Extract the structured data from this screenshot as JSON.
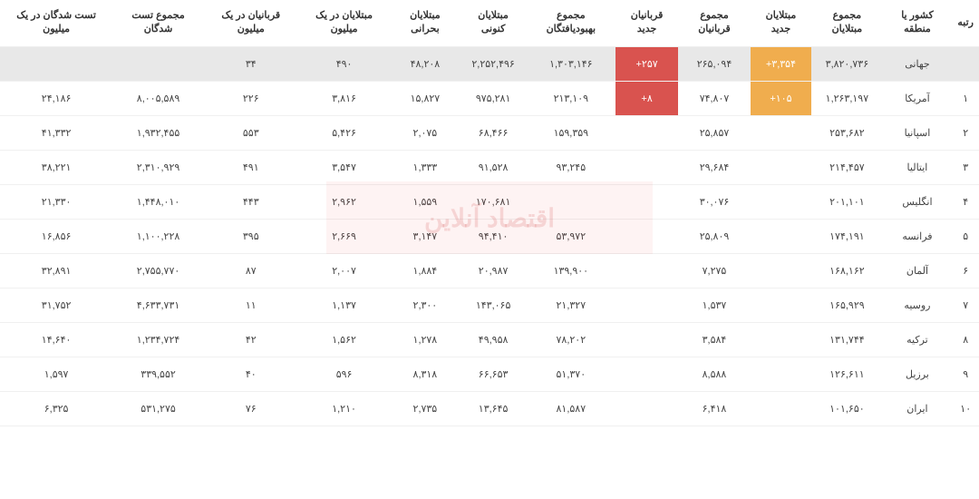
{
  "watermark": "اقتصاد آنلاین",
  "headers": [
    "رتبه",
    "کشور یا منطقه",
    "مجموع مبتلایان",
    "مبتلایان جدید",
    "مجموع قربانیان",
    "قربانیان جدید",
    "مجموع بهبودیافتگان",
    "مبتلایان کنونی",
    "مبتلایان بحرانی",
    "مبتلایان در یک میلیون",
    "قربانیان در یک میلیون",
    "مجموع تست شدگان",
    "تست شدگان در یک میلیون"
  ],
  "rows": [
    {
      "rank": "",
      "country": "جهانی",
      "total_cases": "۳,۸۲۰,۷۳۶",
      "new_cases": "+۳,۳۵۴",
      "new_cases_hl": "orange",
      "total_deaths": "۲۶۵,۰۹۴",
      "new_deaths": "+۲۵۷",
      "new_deaths_hl": "red",
      "recovered": "۱,۳۰۳,۱۴۶",
      "active": "۲,۲۵۲,۴۹۶",
      "critical": "۴۸,۲۰۸",
      "cases_per_m": "۴۹۰",
      "deaths_per_m": "۳۴",
      "tests": "",
      "tests_per_m": "",
      "world": true
    },
    {
      "rank": "۱",
      "country": "آمریکا",
      "total_cases": "۱,۲۶۳,۱۹۷",
      "new_cases": "+۱۰۵",
      "new_cases_hl": "orange",
      "total_deaths": "۷۴,۸۰۷",
      "new_deaths": "+۸",
      "new_deaths_hl": "red",
      "recovered": "۲۱۳,۱۰۹",
      "active": "۹۷۵,۲۸۱",
      "critical": "۱۵,۸۲۷",
      "cases_per_m": "۳,۸۱۶",
      "deaths_per_m": "۲۲۶",
      "tests": "۸,۰۰۵,۵۸۹",
      "tests_per_m": "۲۴,۱۸۶"
    },
    {
      "rank": "۲",
      "country": "اسپانیا",
      "total_cases": "۲۵۳,۶۸۲",
      "new_cases": "",
      "total_deaths": "۲۵,۸۵۷",
      "new_deaths": "",
      "recovered": "۱۵۹,۳۵۹",
      "active": "۶۸,۴۶۶",
      "critical": "۲,۰۷۵",
      "cases_per_m": "۵,۴۲۶",
      "deaths_per_m": "۵۵۳",
      "tests": "۱,۹۳۲,۴۵۵",
      "tests_per_m": "۴۱,۳۳۲"
    },
    {
      "rank": "۳",
      "country": "ایتالیا",
      "total_cases": "۲۱۴,۴۵۷",
      "new_cases": "",
      "total_deaths": "۲۹,۶۸۴",
      "new_deaths": "",
      "recovered": "۹۳,۲۴۵",
      "active": "۹۱,۵۲۸",
      "critical": "۱,۳۳۳",
      "cases_per_m": "۳,۵۴۷",
      "deaths_per_m": "۴۹۱",
      "tests": "۲,۳۱۰,۹۲۹",
      "tests_per_m": "۳۸,۲۲۱"
    },
    {
      "rank": "۴",
      "country": "انگلیس",
      "total_cases": "۲۰۱,۱۰۱",
      "new_cases": "",
      "total_deaths": "۳۰,۰۷۶",
      "new_deaths": "",
      "recovered": "",
      "active": "۱۷۰,۶۸۱",
      "critical": "۱,۵۵۹",
      "cases_per_m": "۲,۹۶۲",
      "deaths_per_m": "۴۴۳",
      "tests": "۱,۴۴۸,۰۱۰",
      "tests_per_m": "۲۱,۳۳۰"
    },
    {
      "rank": "۵",
      "country": "فرانسه",
      "total_cases": "۱۷۴,۱۹۱",
      "new_cases": "",
      "total_deaths": "۲۵,۸۰۹",
      "new_deaths": "",
      "recovered": "۵۳,۹۷۲",
      "active": "۹۴,۴۱۰",
      "critical": "۳,۱۴۷",
      "cases_per_m": "۲,۶۶۹",
      "deaths_per_m": "۳۹۵",
      "tests": "۱,۱۰۰,۲۲۸",
      "tests_per_m": "۱۶,۸۵۶"
    },
    {
      "rank": "۶",
      "country": "آلمان",
      "total_cases": "۱۶۸,۱۶۲",
      "new_cases": "",
      "total_deaths": "۷,۲۷۵",
      "new_deaths": "",
      "recovered": "۱۳۹,۹۰۰",
      "active": "۲۰,۹۸۷",
      "critical": "۱,۸۸۴",
      "cases_per_m": "۲,۰۰۷",
      "deaths_per_m": "۸۷",
      "tests": "۲,۷۵۵,۷۷۰",
      "tests_per_m": "۳۲,۸۹۱"
    },
    {
      "rank": "۷",
      "country": "روسیه",
      "total_cases": "۱۶۵,۹۲۹",
      "new_cases": "",
      "total_deaths": "۱,۵۳۷",
      "new_deaths": "",
      "recovered": "۲۱,۳۲۷",
      "active": "۱۴۳,۰۶۵",
      "critical": "۲,۳۰۰",
      "cases_per_m": "۱,۱۳۷",
      "deaths_per_m": "۱۱",
      "tests": "۴,۶۳۳,۷۳۱",
      "tests_per_m": "۳۱,۷۵۲"
    },
    {
      "rank": "۸",
      "country": "ترکیه",
      "total_cases": "۱۳۱,۷۴۴",
      "new_cases": "",
      "total_deaths": "۳,۵۸۴",
      "new_deaths": "",
      "recovered": "۷۸,۲۰۲",
      "active": "۴۹,۹۵۸",
      "critical": "۱,۲۷۸",
      "cases_per_m": "۱,۵۶۲",
      "deaths_per_m": "۴۲",
      "tests": "۱,۲۳۴,۷۲۴",
      "tests_per_m": "۱۴,۶۴۰"
    },
    {
      "rank": "۹",
      "country": "برزیل",
      "total_cases": "۱۲۶,۶۱۱",
      "new_cases": "",
      "total_deaths": "۸,۵۸۸",
      "new_deaths": "",
      "recovered": "۵۱,۳۷۰",
      "active": "۶۶,۶۵۳",
      "critical": "۸,۳۱۸",
      "cases_per_m": "۵۹۶",
      "deaths_per_m": "۴۰",
      "tests": "۳۳۹,۵۵۲",
      "tests_per_m": "۱,۵۹۷"
    },
    {
      "rank": "۱۰",
      "country": "ایران",
      "total_cases": "۱۰۱,۶۵۰",
      "new_cases": "",
      "total_deaths": "۶,۴۱۸",
      "new_deaths": "",
      "recovered": "۸۱,۵۸۷",
      "active": "۱۳,۶۴۵",
      "critical": "۲,۷۳۵",
      "cases_per_m": "۱,۲۱۰",
      "deaths_per_m": "۷۶",
      "tests": "۵۳۱,۲۷۵",
      "tests_per_m": "۶,۳۲۵"
    }
  ]
}
